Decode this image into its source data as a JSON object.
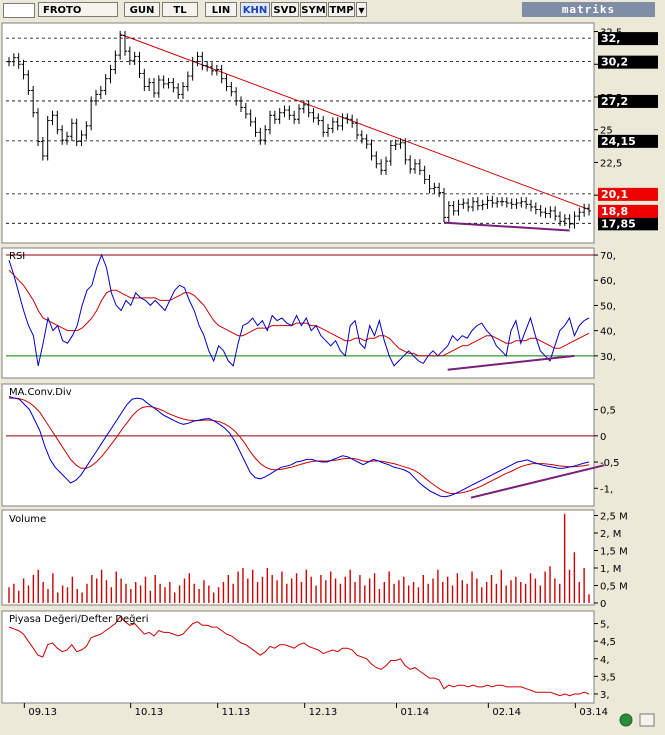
{
  "toolbar": {
    "symbol": "FROTO",
    "buttons": [
      "GUN",
      "TL",
      "LIN",
      "KHN",
      "SVD",
      "SYM",
      "TMP"
    ],
    "active": "KHN",
    "brand": "matriks"
  },
  "colors": {
    "price": "#000000",
    "trend": "#cc0000",
    "divergence": "#7a1f7a",
    "rsi_fast": "#0000cc",
    "rsi_slow": "#cc0000",
    "rsi_upper_line": "#8b0000",
    "rsi_lower_line": "#008000",
    "volume": "#cc0000",
    "pbv": "#cc0000",
    "flag_red": "#ee0000",
    "flag_black": "#000000"
  },
  "chart_data": [
    {
      "panel": "price",
      "type": "line",
      "ylim": [
        16.5,
        33
      ],
      "ticks": [
        "32,5",
        "30",
        "27,5",
        "25",
        "22,5",
        "20"
      ],
      "tick_values": [
        32.5,
        30,
        27.5,
        25,
        22.5,
        20
      ],
      "levels": [
        32,
        30.2,
        27.2,
        24.15,
        20.1,
        17.85
      ],
      "level_labels": [
        "32,",
        "30,2",
        "27,2",
        "24,15",
        "20,1",
        "17,85"
      ],
      "level_flags": [
        "black",
        "black",
        "black",
        "black",
        "red",
        "black"
      ],
      "current_label": "18,8",
      "current_value": 18.8,
      "values": [
        30.2,
        30.5,
        30.0,
        29.2,
        28.0,
        26.3,
        24.1,
        23.0,
        25.7,
        26.1,
        25.0,
        24.2,
        24.5,
        25.5,
        24.1,
        24.6,
        25.3,
        27.2,
        27.7,
        28.0,
        28.9,
        29.6,
        30.7,
        32.2,
        31.0,
        30.3,
        30.6,
        29.3,
        28.3,
        28.6,
        27.8,
        28.8,
        28.5,
        28.6,
        28.2,
        27.7,
        28.3,
        29.1,
        30.2,
        30.6,
        29.9,
        29.8,
        29.5,
        29.6,
        28.9,
        28.3,
        27.9,
        27.2,
        26.7,
        26.2,
        25.6,
        24.8,
        24.2,
        25.0,
        26.1,
        25.8,
        26.3,
        26.5,
        26.1,
        25.8,
        26.6,
        26.9,
        26.3,
        25.9,
        25.7,
        24.8,
        25.1,
        25.6,
        25.3,
        25.9,
        25.8,
        25.5,
        24.6,
        24.3,
        23.9,
        23.0,
        22.4,
        21.9,
        22.6,
        23.8,
        23.9,
        24.0,
        22.7,
        22.0,
        22.4,
        21.9,
        21.2,
        20.5,
        20.6,
        20.2,
        18.3,
        19.2,
        18.8,
        19.3,
        19.4,
        19.1,
        19.5,
        19.2,
        19.3,
        19.6,
        19.4,
        19.5,
        19.5,
        19.4,
        19.3,
        19.4,
        19.5,
        19.3,
        19.1,
        18.9,
        18.7,
        18.6,
        18.8,
        18.4,
        18.0,
        18.2,
        17.8,
        18.4,
        18.7,
        19.0,
        18.8
      ],
      "trendline": {
        "from": [
          23,
          32.3
        ],
        "to": [
          120,
          18.9
        ]
      },
      "support": {
        "from": [
          90,
          17.9
        ],
        "to": [
          116,
          17.3
        ]
      }
    },
    {
      "panel": "rsi",
      "type": "line",
      "title": "RSI",
      "ylim": [
        22,
        72
      ],
      "ticks": [
        "70,",
        "60,",
        "50,",
        "40,",
        "30,"
      ],
      "tick_values": [
        70,
        60,
        50,
        40,
        30
      ],
      "upper_line": 70,
      "lower_line": 30,
      "series": [
        {
          "name": "fast",
          "values": [
            68,
            62,
            55,
            48,
            42,
            38,
            26,
            35,
            45,
            40,
            42,
            36,
            35,
            38,
            42,
            50,
            56,
            58,
            65,
            70,
            65,
            55,
            50,
            48,
            52,
            50,
            55,
            53,
            52,
            50,
            52,
            50,
            48,
            52,
            56,
            58,
            57,
            52,
            48,
            42,
            38,
            32,
            28,
            34,
            32,
            28,
            26,
            35,
            42,
            43,
            45,
            42,
            44,
            40,
            46,
            44,
            45,
            43,
            42,
            46,
            42,
            45,
            40,
            42,
            38,
            36,
            34,
            36,
            32,
            30,
            42,
            44,
            35,
            33,
            42,
            38,
            44,
            36,
            30,
            26,
            28,
            30,
            32,
            30,
            28,
            27,
            30,
            32,
            30,
            32,
            34,
            38,
            36,
            38,
            37,
            40,
            42,
            43,
            40,
            38,
            34,
            32,
            30,
            40,
            44,
            35,
            40,
            45,
            38,
            32,
            30,
            28,
            34,
            40,
            42,
            45,
            38,
            42,
            44,
            45
          ]
        },
        {
          "name": "slow",
          "values": [
            64,
            62,
            60,
            58,
            55,
            52,
            48,
            45,
            44,
            43,
            42,
            41,
            40,
            40,
            40,
            41,
            43,
            45,
            48,
            52,
            55,
            56,
            56,
            55,
            54,
            53,
            53,
            53,
            53,
            53,
            53,
            52,
            52,
            52,
            53,
            54,
            55,
            55,
            54,
            52,
            50,
            47,
            44,
            42,
            41,
            40,
            39,
            38,
            38,
            39,
            40,
            41,
            41,
            41,
            42,
            42,
            42,
            42,
            42,
            43,
            43,
            43,
            42,
            42,
            41,
            40,
            39,
            38,
            37,
            36,
            36,
            37,
            37,
            36,
            37,
            37,
            38,
            38,
            37,
            35,
            33,
            32,
            31,
            31,
            30,
            30,
            30,
            30,
            30,
            30,
            31,
            32,
            33,
            34,
            34,
            35,
            36,
            37,
            38,
            38,
            37,
            36,
            35,
            35,
            36,
            36,
            36,
            37,
            37,
            36,
            35,
            34,
            33,
            33,
            34,
            35,
            36,
            37,
            38,
            39
          ]
        }
      ],
      "divergence": {
        "from": [
          90,
          24.5
        ],
        "to": [
          116,
          30
        ]
      }
    },
    {
      "panel": "macd",
      "type": "line",
      "title": "MA.Conv.Div",
      "ylim": [
        -1.3,
        0.95
      ],
      "ticks": [
        "0,5",
        "0",
        "-0,5",
        "-1,"
      ],
      "tick_values": [
        0.5,
        0,
        -0.5,
        -1
      ],
      "zero_line": 0,
      "series": [
        {
          "name": "macd",
          "values": [
            0.75,
            0.72,
            0.7,
            0.6,
            0.5,
            0.3,
            0.1,
            -0.2,
            -0.45,
            -0.6,
            -0.7,
            -0.8,
            -0.9,
            -0.85,
            -0.75,
            -0.6,
            -0.45,
            -0.3,
            -0.15,
            0.0,
            0.15,
            0.3,
            0.45,
            0.6,
            0.7,
            0.72,
            0.7,
            0.62,
            0.55,
            0.48,
            0.4,
            0.35,
            0.3,
            0.25,
            0.22,
            0.24,
            0.28,
            0.3,
            0.32,
            0.33,
            0.28,
            0.22,
            0.15,
            0.05,
            -0.1,
            -0.3,
            -0.5,
            -0.7,
            -0.8,
            -0.82,
            -0.78,
            -0.72,
            -0.66,
            -0.6,
            -0.58,
            -0.55,
            -0.5,
            -0.48,
            -0.45,
            -0.45,
            -0.48,
            -0.5,
            -0.5,
            -0.46,
            -0.42,
            -0.38,
            -0.4,
            -0.45,
            -0.5,
            -0.55,
            -0.5,
            -0.45,
            -0.48,
            -0.52,
            -0.55,
            -0.6,
            -0.62,
            -0.65,
            -0.7,
            -0.8,
            -0.9,
            -0.98,
            -1.05,
            -1.1,
            -1.15,
            -1.16,
            -1.14,
            -1.1,
            -1.05,
            -1.0,
            -0.95,
            -0.9,
            -0.85,
            -0.8,
            -0.75,
            -0.7,
            -0.65,
            -0.6,
            -0.55,
            -0.5,
            -0.48,
            -0.46,
            -0.5,
            -0.53,
            -0.56,
            -0.58,
            -0.6,
            -0.62,
            -0.62,
            -0.6,
            -0.58,
            -0.55,
            -0.52,
            -0.5
          ]
        },
        {
          "name": "signal",
          "values": [
            0.72,
            0.72,
            0.71,
            0.68,
            0.63,
            0.55,
            0.45,
            0.3,
            0.15,
            0.0,
            -0.15,
            -0.3,
            -0.45,
            -0.55,
            -0.62,
            -0.62,
            -0.58,
            -0.5,
            -0.4,
            -0.28,
            -0.15,
            -0.02,
            0.12,
            0.25,
            0.38,
            0.48,
            0.54,
            0.56,
            0.55,
            0.52,
            0.48,
            0.43,
            0.39,
            0.35,
            0.32,
            0.3,
            0.29,
            0.29,
            0.3,
            0.3,
            0.29,
            0.27,
            0.23,
            0.17,
            0.09,
            -0.02,
            -0.15,
            -0.3,
            -0.43,
            -0.53,
            -0.6,
            -0.64,
            -0.65,
            -0.64,
            -0.62,
            -0.6,
            -0.57,
            -0.54,
            -0.51,
            -0.49,
            -0.48,
            -0.48,
            -0.48,
            -0.47,
            -0.46,
            -0.44,
            -0.43,
            -0.43,
            -0.45,
            -0.48,
            -0.49,
            -0.48,
            -0.48,
            -0.49,
            -0.51,
            -0.53,
            -0.56,
            -0.59,
            -0.62,
            -0.66,
            -0.72,
            -0.8,
            -0.88,
            -0.95,
            -1.02,
            -1.07,
            -1.1,
            -1.1,
            -1.09,
            -1.07,
            -1.04,
            -1.0,
            -0.96,
            -0.91,
            -0.86,
            -0.81,
            -0.76,
            -0.71,
            -0.67,
            -0.62,
            -0.58,
            -0.55,
            -0.53,
            -0.53,
            -0.53,
            -0.54,
            -0.55,
            -0.57,
            -0.58,
            -0.59,
            -0.59,
            -0.58,
            -0.57,
            -0.55
          ]
        }
      ],
      "divergence": {
        "from": [
          90,
          -1.18
        ],
        "to": [
          116,
          -0.56
        ]
      }
    },
    {
      "panel": "volume",
      "type": "bar",
      "title": "Volume",
      "ylim": [
        0,
        2.6
      ],
      "ticks": [
        "2,5 M",
        "2, M",
        "1,5 M",
        "1, M",
        "0,5 M",
        "0"
      ],
      "tick_values": [
        2.5,
        2,
        1.5,
        1,
        0.5,
        0
      ],
      "values": [
        0.45,
        0.55,
        0.35,
        0.7,
        0.5,
        0.8,
        0.95,
        0.6,
        0.4,
        0.85,
        0.3,
        0.5,
        0.45,
        0.75,
        0.4,
        0.3,
        0.55,
        0.8,
        0.7,
        0.95,
        0.65,
        0.45,
        0.9,
        0.7,
        0.55,
        0.4,
        0.6,
        0.5,
        0.75,
        0.35,
        0.8,
        0.55,
        0.45,
        0.6,
        0.3,
        0.5,
        0.7,
        0.85,
        0.55,
        0.4,
        0.65,
        0.5,
        0.3,
        0.45,
        0.6,
        0.8,
        0.55,
        0.9,
        1.0,
        0.7,
        0.95,
        0.6,
        0.75,
        1.0,
        0.8,
        0.65,
        0.9,
        0.55,
        0.7,
        0.85,
        0.6,
        0.95,
        0.75,
        0.5,
        0.8,
        0.65,
        0.9,
        0.7,
        0.55,
        0.75,
        0.95,
        0.6,
        0.8,
        0.5,
        0.7,
        0.85,
        0.4,
        0.6,
        0.9,
        0.55,
        0.65,
        0.75,
        0.5,
        0.6,
        0.45,
        0.8,
        0.55,
        0.7,
        0.95,
        0.6,
        0.75,
        0.5,
        0.85,
        0.65,
        0.55,
        0.9,
        0.7,
        0.45,
        0.6,
        0.8,
        0.55,
        0.95,
        0.5,
        0.65,
        0.75,
        0.6,
        0.55,
        0.85,
        0.7,
        0.5,
        0.9,
        1.05,
        0.7,
        0.55,
        2.55,
        0.95,
        1.45,
        0.6,
        1.0,
        0.25
      ]
    },
    {
      "panel": "pbv",
      "type": "line",
      "title": "Piyasa Değeri/Defter Değeri",
      "ylim": [
        2.8,
        5.3
      ],
      "ticks": [
        "5,",
        "4,5",
        "4,",
        "3,5",
        "3,"
      ],
      "tick_values": [
        5,
        4.5,
        4,
        3.5,
        3
      ],
      "values": [
        4.9,
        4.85,
        4.8,
        4.7,
        4.5,
        4.3,
        4.1,
        4.05,
        4.4,
        4.45,
        4.3,
        4.2,
        4.25,
        4.4,
        4.2,
        4.25,
        4.35,
        4.6,
        4.65,
        4.7,
        4.8,
        4.9,
        5.0,
        5.2,
        5.05,
        4.95,
        5.0,
        4.85,
        4.7,
        4.75,
        4.65,
        4.8,
        4.75,
        4.75,
        4.7,
        4.65,
        4.7,
        4.85,
        5.0,
        5.05,
        4.95,
        4.95,
        4.9,
        4.9,
        4.8,
        4.7,
        4.65,
        4.55,
        4.45,
        4.4,
        4.3,
        4.2,
        4.1,
        4.2,
        4.35,
        4.3,
        4.4,
        4.4,
        4.35,
        4.3,
        4.4,
        4.45,
        4.35,
        4.3,
        4.25,
        4.15,
        4.2,
        4.25,
        4.2,
        4.3,
        4.3,
        4.25,
        4.1,
        4.05,
        4.0,
        3.85,
        3.75,
        3.7,
        3.8,
        3.95,
        3.95,
        4.0,
        3.8,
        3.7,
        3.75,
        3.65,
        3.55,
        3.45,
        3.45,
        3.4,
        3.15,
        3.25,
        3.2,
        3.25,
        3.25,
        3.2,
        3.25,
        3.2,
        3.2,
        3.25,
        3.2,
        3.25,
        3.25,
        3.2,
        3.2,
        3.2,
        3.2,
        3.15,
        3.1,
        3.05,
        3.05,
        3.05,
        3.05,
        3.0,
        2.95,
        3.0,
        2.95,
        3.0,
        3.0,
        3.05,
        3.0
      ]
    }
  ],
  "x_axis": {
    "labels": [
      "09.13",
      "10.13",
      "11.13",
      "12.13",
      "01.14",
      "02.14",
      "03.14"
    ],
    "label_index": [
      4,
      26,
      44,
      62,
      81,
      100,
      118
    ]
  }
}
